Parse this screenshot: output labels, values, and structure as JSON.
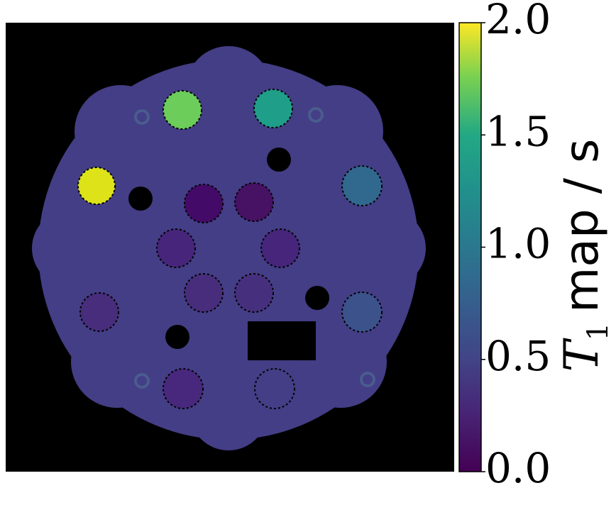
{
  "chart_data": {
    "type": "image",
    "colorbar": {
      "clim": [
        0,
        2
      ],
      "ticks": [
        {
          "value": 0,
          "label": "0.0"
        },
        {
          "value": 0.5,
          "label": "0.5"
        },
        {
          "value": 1,
          "label": "1.0"
        },
        {
          "value": 1.5,
          "label": "1.5"
        },
        {
          "value": 2,
          "label": "2.0"
        }
      ],
      "label": {
        "symbol": "T",
        "subscript": "1",
        "text": "map / s"
      }
    }
  }
}
